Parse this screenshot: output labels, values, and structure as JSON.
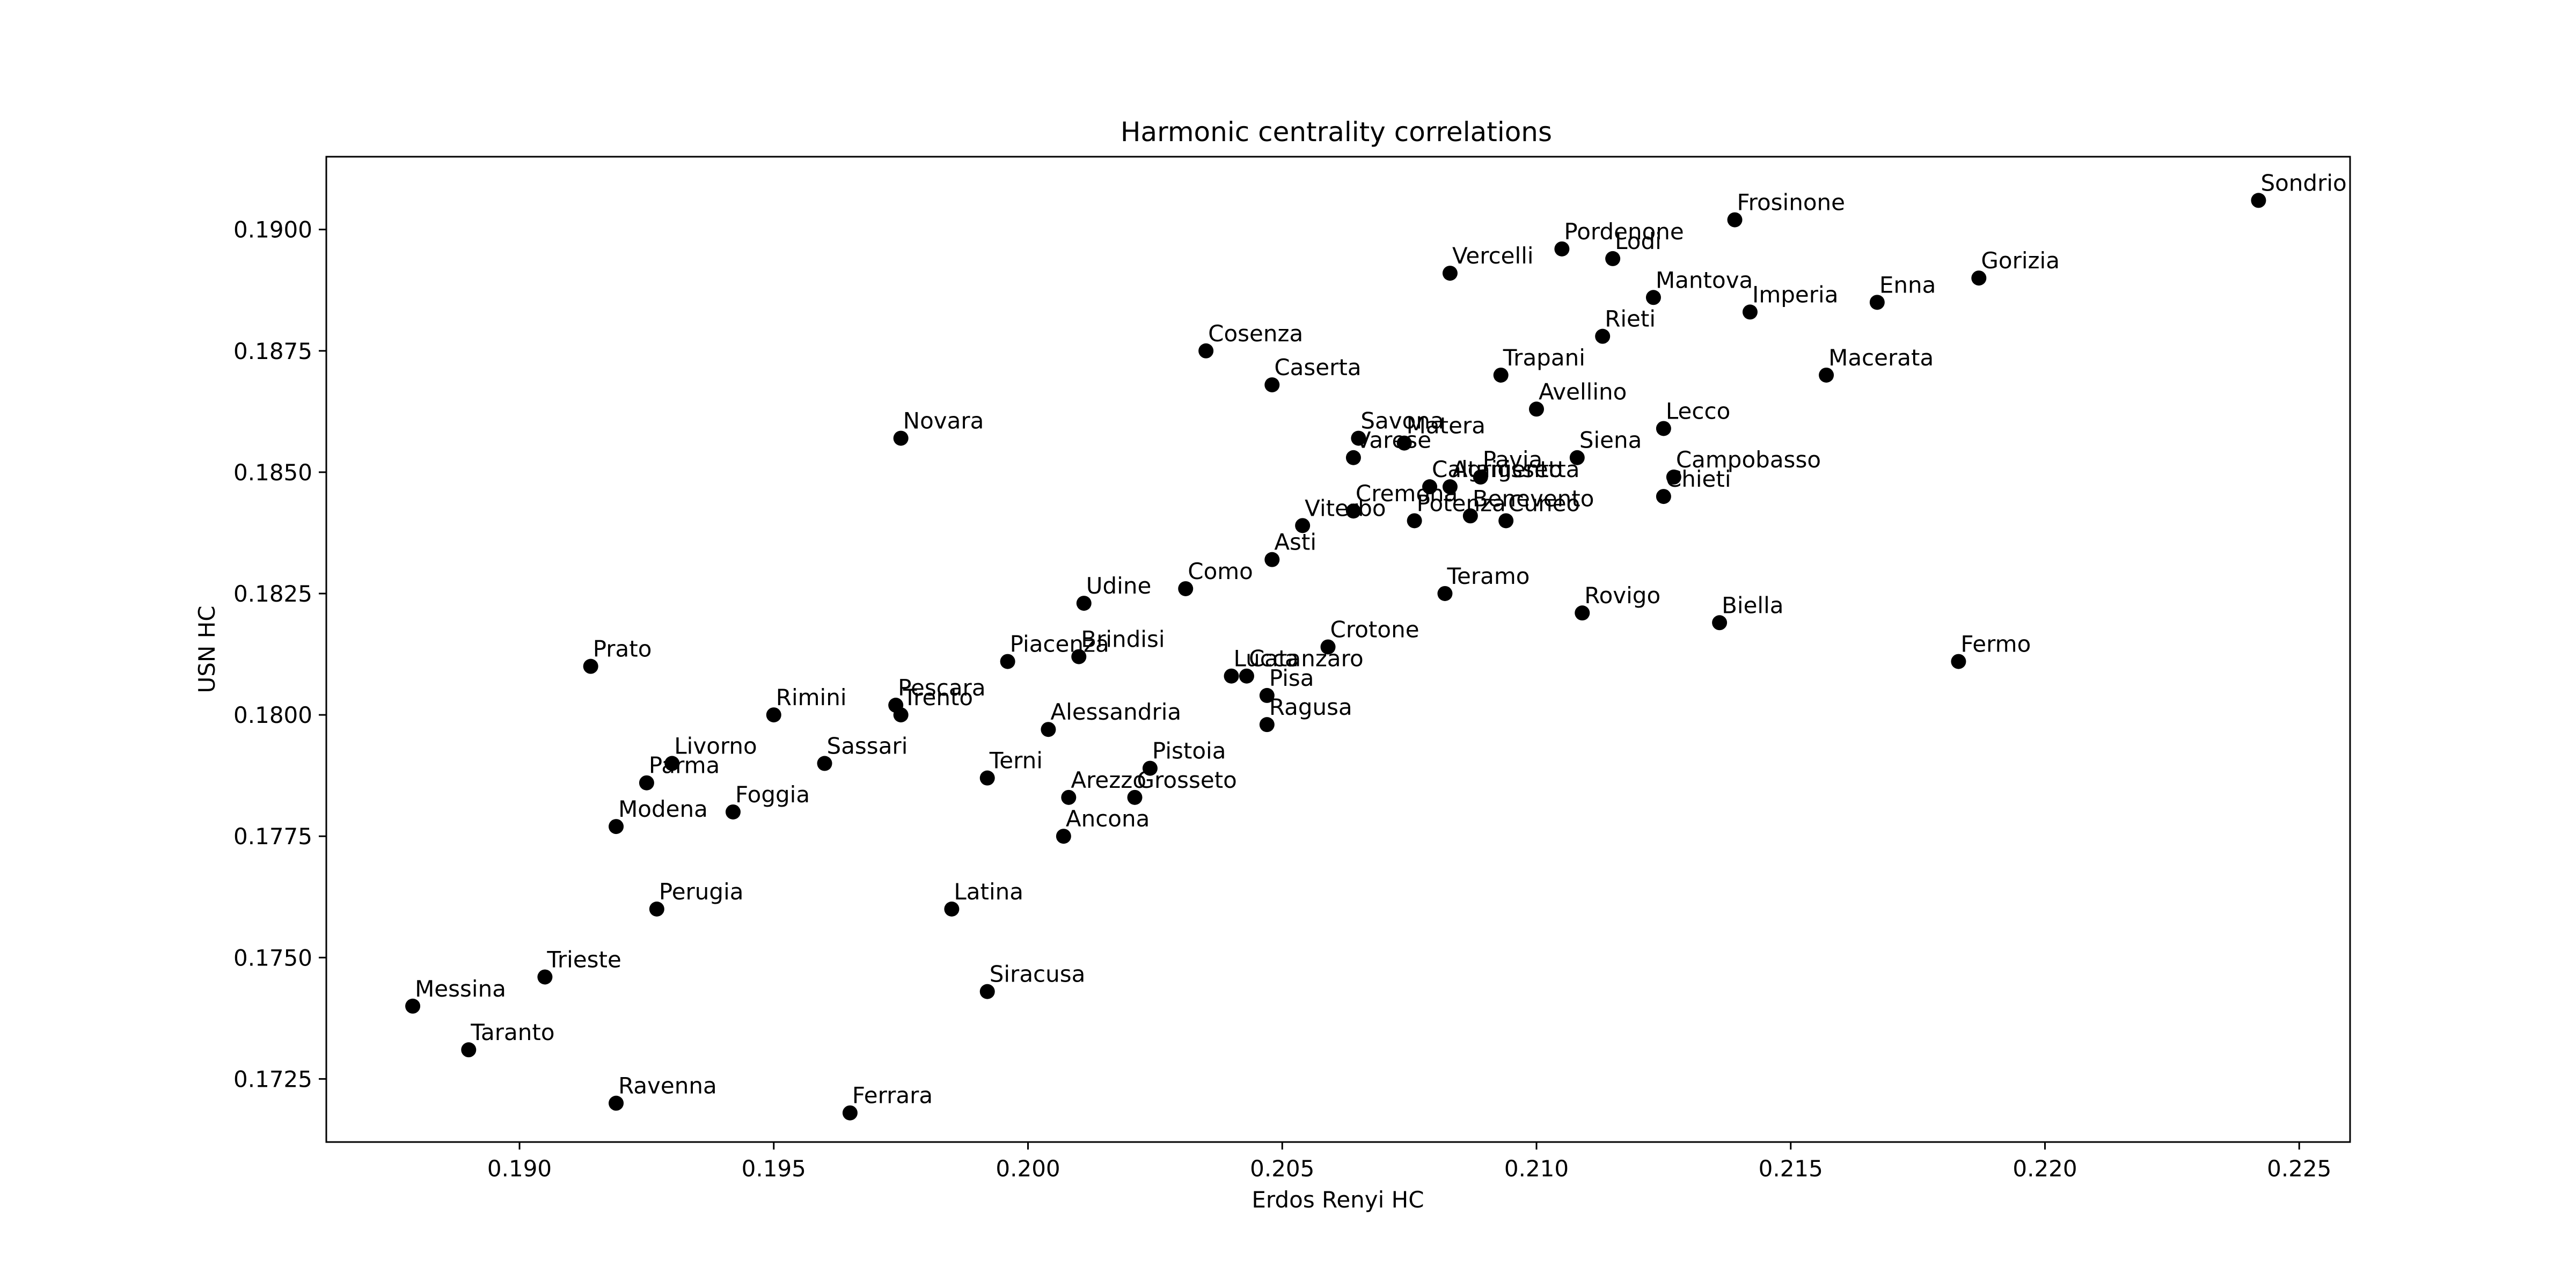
{
  "chart_data": {
    "type": "scatter",
    "title": "Harmonic centrality correlations",
    "xlabel": "Erdos Renyi HC",
    "ylabel": "USN HC",
    "xlim": [
      0.1862,
      0.226
    ],
    "ylim": [
      0.1712,
      0.1915
    ],
    "xticks": [
      0.19,
      0.195,
      0.2,
      0.205,
      0.21,
      0.215,
      0.22,
      0.225
    ],
    "xtick_labels": [
      "0.190",
      "0.195",
      "0.200",
      "0.205",
      "0.210",
      "0.215",
      "0.220",
      "0.225"
    ],
    "yticks": [
      0.1725,
      0.175,
      0.1775,
      0.18,
      0.1825,
      0.185,
      0.1875,
      0.19
    ],
    "ytick_labels": [
      "0.1725",
      "0.1750",
      "0.1775",
      "0.1800",
      "0.1825",
      "0.1850",
      "0.1875",
      "0.1900"
    ],
    "grid": false,
    "marker_color": "#000000",
    "points": [
      {
        "label": "Sondrio",
        "x": 0.2242,
        "y": 0.1906
      },
      {
        "label": "Frosinone",
        "x": 0.2139,
        "y": 0.1902
      },
      {
        "label": "Pordenone",
        "x": 0.2105,
        "y": 0.1896
      },
      {
        "label": "Lodi",
        "x": 0.2115,
        "y": 0.1894
      },
      {
        "label": "Vercelli",
        "x": 0.2083,
        "y": 0.1891
      },
      {
        "label": "Gorizia",
        "x": 0.2187,
        "y": 0.189
      },
      {
        "label": "Mantova",
        "x": 0.2123,
        "y": 0.1886
      },
      {
        "label": "Enna",
        "x": 0.2167,
        "y": 0.1885
      },
      {
        "label": "Imperia",
        "x": 0.2142,
        "y": 0.1883
      },
      {
        "label": "Rieti",
        "x": 0.2113,
        "y": 0.1878
      },
      {
        "label": "Cosenza",
        "x": 0.2035,
        "y": 0.1875
      },
      {
        "label": "Trapani",
        "x": 0.2093,
        "y": 0.187
      },
      {
        "label": "Macerata",
        "x": 0.2157,
        "y": 0.187
      },
      {
        "label": "Caserta",
        "x": 0.2048,
        "y": 0.1868
      },
      {
        "label": "Avellino",
        "x": 0.21,
        "y": 0.1863
      },
      {
        "label": "Lecco",
        "x": 0.2125,
        "y": 0.1859
      },
      {
        "label": "Novara",
        "x": 0.1975,
        "y": 0.1857
      },
      {
        "label": "Savona",
        "x": 0.2065,
        "y": 0.1857
      },
      {
        "label": "Matera",
        "x": 0.2074,
        "y": 0.1856
      },
      {
        "label": "Varese",
        "x": 0.2064,
        "y": 0.1853
      },
      {
        "label": "Siena",
        "x": 0.2108,
        "y": 0.1853
      },
      {
        "label": "Campobasso",
        "x": 0.2127,
        "y": 0.1849
      },
      {
        "label": "Pavia",
        "x": 0.2089,
        "y": 0.1849
      },
      {
        "label": "Caltanissetta",
        "x": 0.2079,
        "y": 0.1847
      },
      {
        "label": "Agrigento",
        "x": 0.2083,
        "y": 0.1847
      },
      {
        "label": "Chieti",
        "x": 0.2125,
        "y": 0.1845
      },
      {
        "label": "Cremona",
        "x": 0.2064,
        "y": 0.1842
      },
      {
        "label": "Benevento",
        "x": 0.2087,
        "y": 0.1841
      },
      {
        "label": "Potenza",
        "x": 0.2076,
        "y": 0.184
      },
      {
        "label": "Cuneo",
        "x": 0.2094,
        "y": 0.184
      },
      {
        "label": "Viterbo",
        "x": 0.2054,
        "y": 0.1839
      },
      {
        "label": "Asti",
        "x": 0.2048,
        "y": 0.1832
      },
      {
        "label": "Como",
        "x": 0.2031,
        "y": 0.1826
      },
      {
        "label": "Teramo",
        "x": 0.2082,
        "y": 0.1825
      },
      {
        "label": "Udine",
        "x": 0.2011,
        "y": 0.1823
      },
      {
        "label": "Rovigo",
        "x": 0.2109,
        "y": 0.1821
      },
      {
        "label": "Biella",
        "x": 0.2136,
        "y": 0.1819
      },
      {
        "label": "Crotone",
        "x": 0.2059,
        "y": 0.1814
      },
      {
        "label": "Brindisi",
        "x": 0.201,
        "y": 0.1812
      },
      {
        "label": "Piacenza",
        "x": 0.1996,
        "y": 0.1811
      },
      {
        "label": "Fermo",
        "x": 0.2183,
        "y": 0.1811
      },
      {
        "label": "Prato",
        "x": 0.1914,
        "y": 0.181
      },
      {
        "label": "Lucca",
        "x": 0.204,
        "y": 0.1808
      },
      {
        "label": "Catanzaro",
        "x": 0.2043,
        "y": 0.1808
      },
      {
        "label": "Pisa",
        "x": 0.2047,
        "y": 0.1804
      },
      {
        "label": "Pescara",
        "x": 0.1974,
        "y": 0.1802
      },
      {
        "label": "Trento",
        "x": 0.1975,
        "y": 0.18
      },
      {
        "label": "Rimini",
        "x": 0.195,
        "y": 0.18
      },
      {
        "label": "Ragusa",
        "x": 0.2047,
        "y": 0.1798
      },
      {
        "label": "Alessandria",
        "x": 0.2004,
        "y": 0.1797
      },
      {
        "label": "Livorno",
        "x": 0.193,
        "y": 0.179
      },
      {
        "label": "Sassari",
        "x": 0.196,
        "y": 0.179
      },
      {
        "label": "Pistoia",
        "x": 0.2024,
        "y": 0.1789
      },
      {
        "label": "Terni",
        "x": 0.1992,
        "y": 0.1787
      },
      {
        "label": "Parma",
        "x": 0.1925,
        "y": 0.1786
      },
      {
        "label": "Arezzo",
        "x": 0.2008,
        "y": 0.1783
      },
      {
        "label": "Grosseto",
        "x": 0.2021,
        "y": 0.1783
      },
      {
        "label": "Foggia",
        "x": 0.1942,
        "y": 0.178
      },
      {
        "label": "Modena",
        "x": 0.1919,
        "y": 0.1777
      },
      {
        "label": "Ancona",
        "x": 0.2007,
        "y": 0.1775
      },
      {
        "label": "Perugia",
        "x": 0.1927,
        "y": 0.176
      },
      {
        "label": "Latina",
        "x": 0.1985,
        "y": 0.176
      },
      {
        "label": "Trieste",
        "x": 0.1905,
        "y": 0.1746
      },
      {
        "label": "Siracusa",
        "x": 0.1992,
        "y": 0.1743
      },
      {
        "label": "Messina",
        "x": 0.1879,
        "y": 0.174
      },
      {
        "label": "Taranto",
        "x": 0.189,
        "y": 0.1731
      },
      {
        "label": "Ravenna",
        "x": 0.1919,
        "y": 0.172
      },
      {
        "label": "Ferrara",
        "x": 0.1965,
        "y": 0.1718
      }
    ]
  }
}
